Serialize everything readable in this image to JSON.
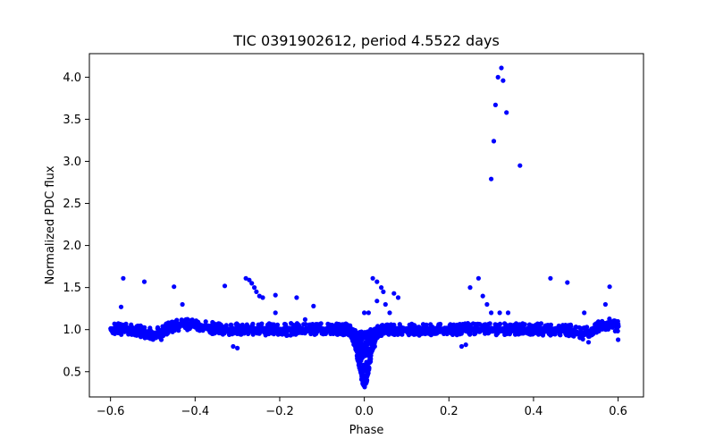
{
  "chart_data": {
    "type": "scatter",
    "title": "TIC 0391902612, period 4.5522 days",
    "xlabel": "Phase",
    "ylabel": "Normalized PDC flux",
    "xlim": [
      -0.65,
      0.66
    ],
    "ylim": [
      0.2,
      4.28
    ],
    "xticks": [
      "-0.6",
      "-0.4",
      "-0.2",
      "0.0",
      "0.2",
      "0.4",
      "0.6"
    ],
    "yticks": [
      "0.5",
      "1.0",
      "1.5",
      "2.0",
      "2.5",
      "3.0",
      "3.5",
      "4.0"
    ],
    "grid": false,
    "marker_color": "#0000ff",
    "outliers": [
      {
        "x": 0.3,
        "y": 2.79
      },
      {
        "x": 0.306,
        "y": 3.24
      },
      {
        "x": 0.31,
        "y": 3.67
      },
      {
        "x": 0.316,
        "y": 4.0
      },
      {
        "x": 0.324,
        "y": 4.11
      },
      {
        "x": 0.328,
        "y": 3.96
      },
      {
        "x": 0.336,
        "y": 3.58
      },
      {
        "x": 0.368,
        "y": 2.95
      },
      {
        "x": -0.57,
        "y": 1.61
      },
      {
        "x": -0.52,
        "y": 1.57
      },
      {
        "x": -0.575,
        "y": 1.27
      },
      {
        "x": -0.45,
        "y": 1.51
      },
      {
        "x": -0.43,
        "y": 1.3
      },
      {
        "x": -0.33,
        "y": 1.52
      },
      {
        "x": -0.28,
        "y": 1.61
      },
      {
        "x": -0.272,
        "y": 1.59
      },
      {
        "x": -0.266,
        "y": 1.55
      },
      {
        "x": -0.26,
        "y": 1.5
      },
      {
        "x": -0.255,
        "y": 1.45
      },
      {
        "x": -0.248,
        "y": 1.4
      },
      {
        "x": -0.24,
        "y": 1.38
      },
      {
        "x": -0.21,
        "y": 1.41
      },
      {
        "x": -0.16,
        "y": 1.38
      },
      {
        "x": -0.12,
        "y": 1.28
      },
      {
        "x": -0.21,
        "y": 1.2
      },
      {
        "x": -0.14,
        "y": 1.12
      },
      {
        "x": 0.02,
        "y": 1.61
      },
      {
        "x": 0.03,
        "y": 1.57
      },
      {
        "x": 0.04,
        "y": 1.5
      },
      {
        "x": 0.045,
        "y": 1.45
      },
      {
        "x": 0.03,
        "y": 1.34
      },
      {
        "x": 0.05,
        "y": 1.3
      },
      {
        "x": 0.07,
        "y": 1.43
      },
      {
        "x": 0.08,
        "y": 1.38
      },
      {
        "x": 0.0,
        "y": 1.2
      },
      {
        "x": 0.01,
        "y": 1.2
      },
      {
        "x": 0.06,
        "y": 1.2
      },
      {
        "x": 0.27,
        "y": 1.61
      },
      {
        "x": 0.25,
        "y": 1.5
      },
      {
        "x": 0.28,
        "y": 1.4
      },
      {
        "x": 0.29,
        "y": 1.3
      },
      {
        "x": 0.32,
        "y": 1.2
      },
      {
        "x": 0.34,
        "y": 1.2
      },
      {
        "x": 0.3,
        "y": 1.2
      },
      {
        "x": 0.44,
        "y": 1.61
      },
      {
        "x": 0.48,
        "y": 1.56
      },
      {
        "x": 0.58,
        "y": 1.51
      },
      {
        "x": 0.57,
        "y": 1.3
      },
      {
        "x": 0.52,
        "y": 1.2
      },
      {
        "x": -0.3,
        "y": 0.78
      },
      {
        "x": -0.31,
        "y": 0.8
      },
      {
        "x": 0.23,
        "y": 0.8
      },
      {
        "x": 0.24,
        "y": 0.82
      },
      {
        "x": -0.48,
        "y": 0.88
      },
      {
        "x": 0.53,
        "y": 0.85
      },
      {
        "x": 0.6,
        "y": 0.88
      }
    ]
  }
}
